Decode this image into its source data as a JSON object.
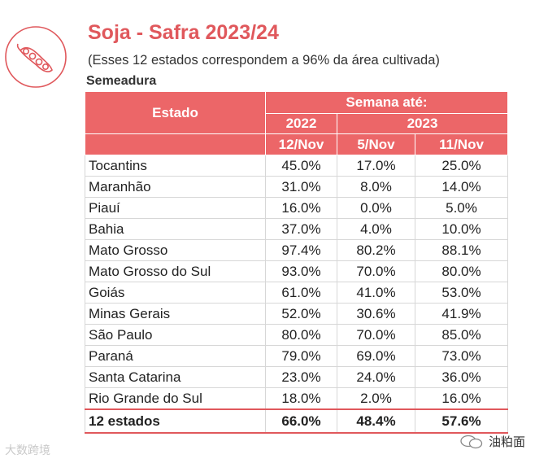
{
  "header": {
    "title": "Soja - Safra 2023/24",
    "subtitle": "(Esses 12 estados correspondem a 96% da área cultivada)",
    "section": "Semeadura"
  },
  "table": {
    "head": {
      "state_col": "Estado",
      "week_label": "Semana até:",
      "year_2022": "2022",
      "year_2023": "2023",
      "dates": [
        "12/Nov",
        "5/Nov",
        "11/Nov"
      ]
    },
    "rows": [
      {
        "state": "Tocantins",
        "v": [
          "45.0%",
          "17.0%",
          "25.0%"
        ]
      },
      {
        "state": "Maranhão",
        "v": [
          "31.0%",
          "8.0%",
          "14.0%"
        ]
      },
      {
        "state": "Piauí",
        "v": [
          "16.0%",
          "0.0%",
          "5.0%"
        ]
      },
      {
        "state": "Bahia",
        "v": [
          "37.0%",
          "4.0%",
          "10.0%"
        ]
      },
      {
        "state": "Mato Grosso",
        "v": [
          "97.4%",
          "80.2%",
          "88.1%"
        ]
      },
      {
        "state": "Mato Grosso do Sul",
        "v": [
          "93.0%",
          "70.0%",
          "80.0%"
        ]
      },
      {
        "state": "Goiás",
        "v": [
          "61.0%",
          "41.0%",
          "53.0%"
        ]
      },
      {
        "state": "Minas Gerais",
        "v": [
          "52.0%",
          "30.6%",
          "41.9%"
        ]
      },
      {
        "state": "São Paulo",
        "v": [
          "80.0%",
          "70.0%",
          "85.0%"
        ]
      },
      {
        "state": "Paraná",
        "v": [
          "79.0%",
          "69.0%",
          "73.0%"
        ]
      },
      {
        "state": "Santa Catarina",
        "v": [
          "23.0%",
          "24.0%",
          "36.0%"
        ]
      },
      {
        "state": "Rio Grande do Sul",
        "v": [
          "18.0%",
          "2.0%",
          "16.0%"
        ]
      }
    ],
    "total": {
      "state": "12 estados",
      "v": [
        "66.0%",
        "48.4%",
        "57.6%"
      ]
    }
  },
  "watermarks": {
    "left": "大数跨境",
    "right": "油粕面"
  },
  "colors": {
    "accent": "#e0585c",
    "header_bg": "#ec6668"
  }
}
